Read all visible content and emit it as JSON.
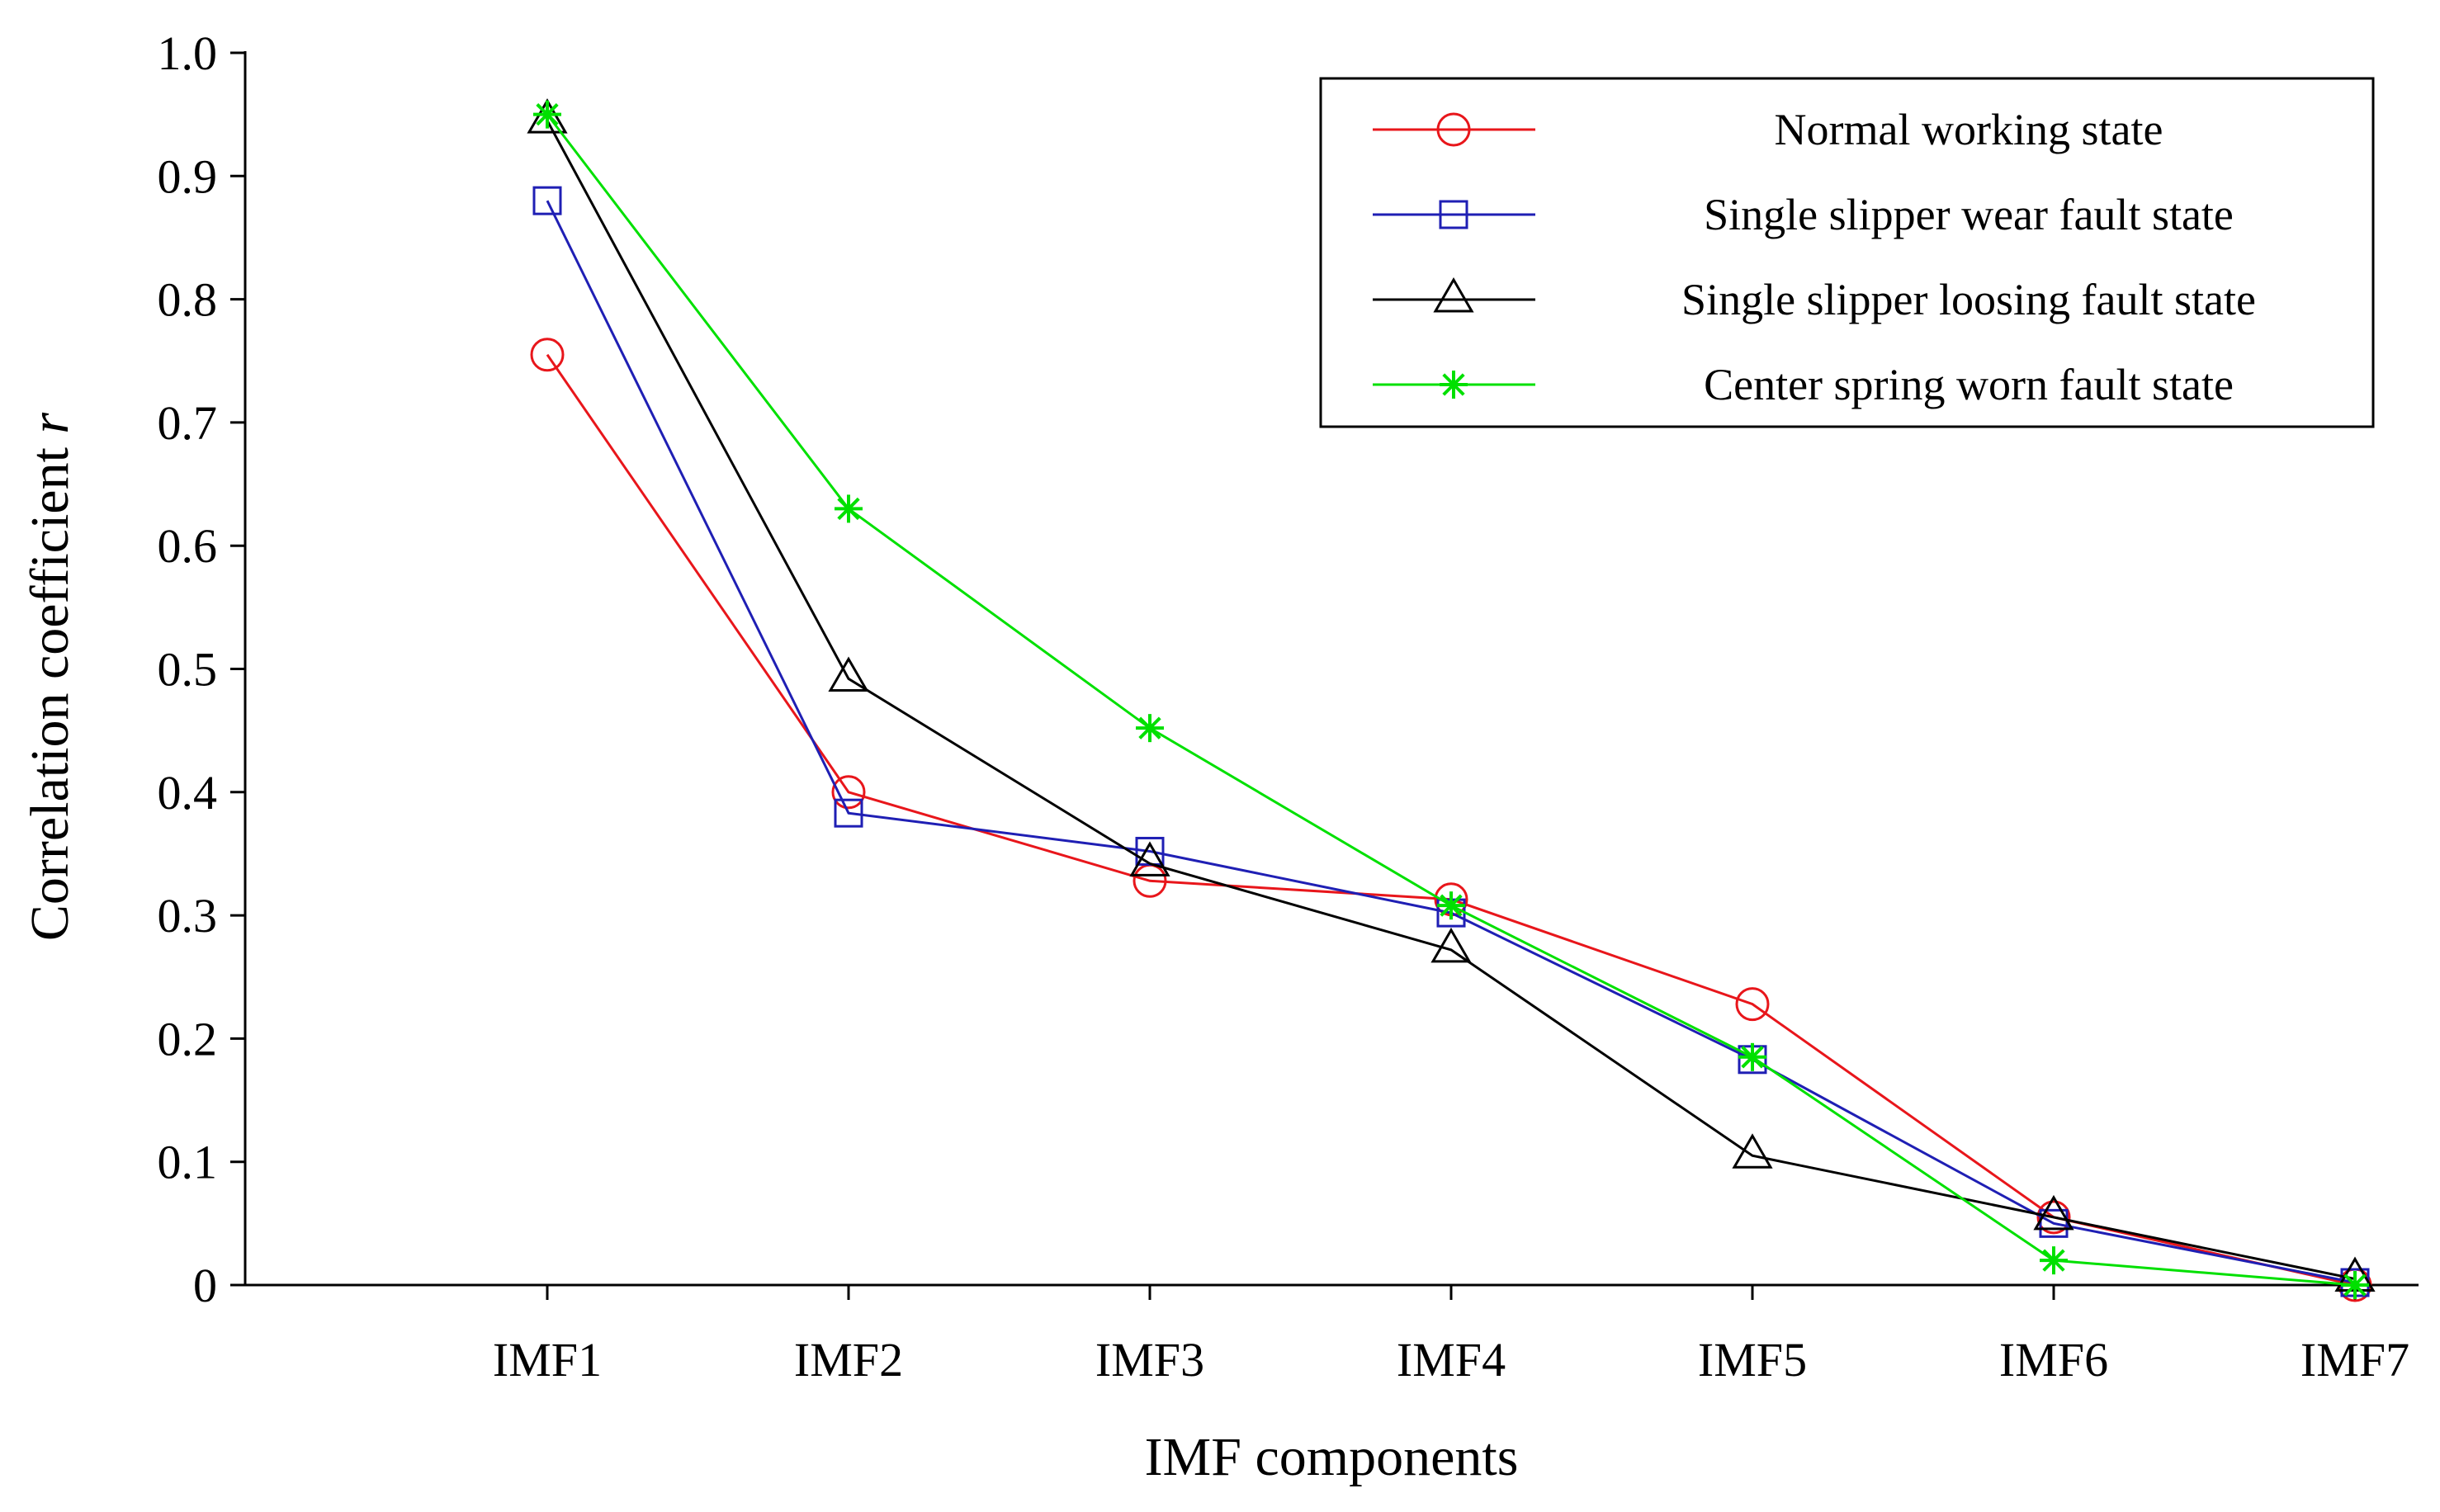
{
  "chart_data": {
    "type": "line",
    "xlabel": "IMF components",
    "ylabel": "Correlation coefficient",
    "ylabel_symbol": "r",
    "categories": [
      "IMF1",
      "IMF2",
      "IMF3",
      "IMF4",
      "IMF5",
      "IMF6",
      "IMF7"
    ],
    "ylim": [
      0,
      1.0
    ],
    "yticks": [
      "0",
      "0.1",
      "0.2",
      "0.3",
      "0.4",
      "0.5",
      "0.6",
      "0.7",
      "0.8",
      "0.9",
      "1.0"
    ],
    "grid": false,
    "legend_position": "top-right",
    "series": [
      {
        "name": "Normal working state",
        "color": "#e8161b",
        "marker": "circle",
        "values": [
          0.755,
          0.4,
          0.328,
          0.313,
          0.228,
          0.055,
          0.0
        ]
      },
      {
        "name": "Single slipper wear fault state",
        "color": "#1f1fb4",
        "marker": "square",
        "values": [
          0.88,
          0.383,
          0.352,
          0.302,
          0.183,
          0.05,
          0.002
        ]
      },
      {
        "name": "Single slipper loosing fault state",
        "color": "#000000",
        "marker": "triangle",
        "values": [
          0.945,
          0.492,
          0.342,
          0.272,
          0.105,
          0.055,
          0.005
        ]
      },
      {
        "name": "Center spring worn fault state",
        "color": "#00e000",
        "marker": "star",
        "values": [
          0.95,
          0.63,
          0.452,
          0.308,
          0.185,
          0.02,
          0.0
        ]
      }
    ]
  }
}
